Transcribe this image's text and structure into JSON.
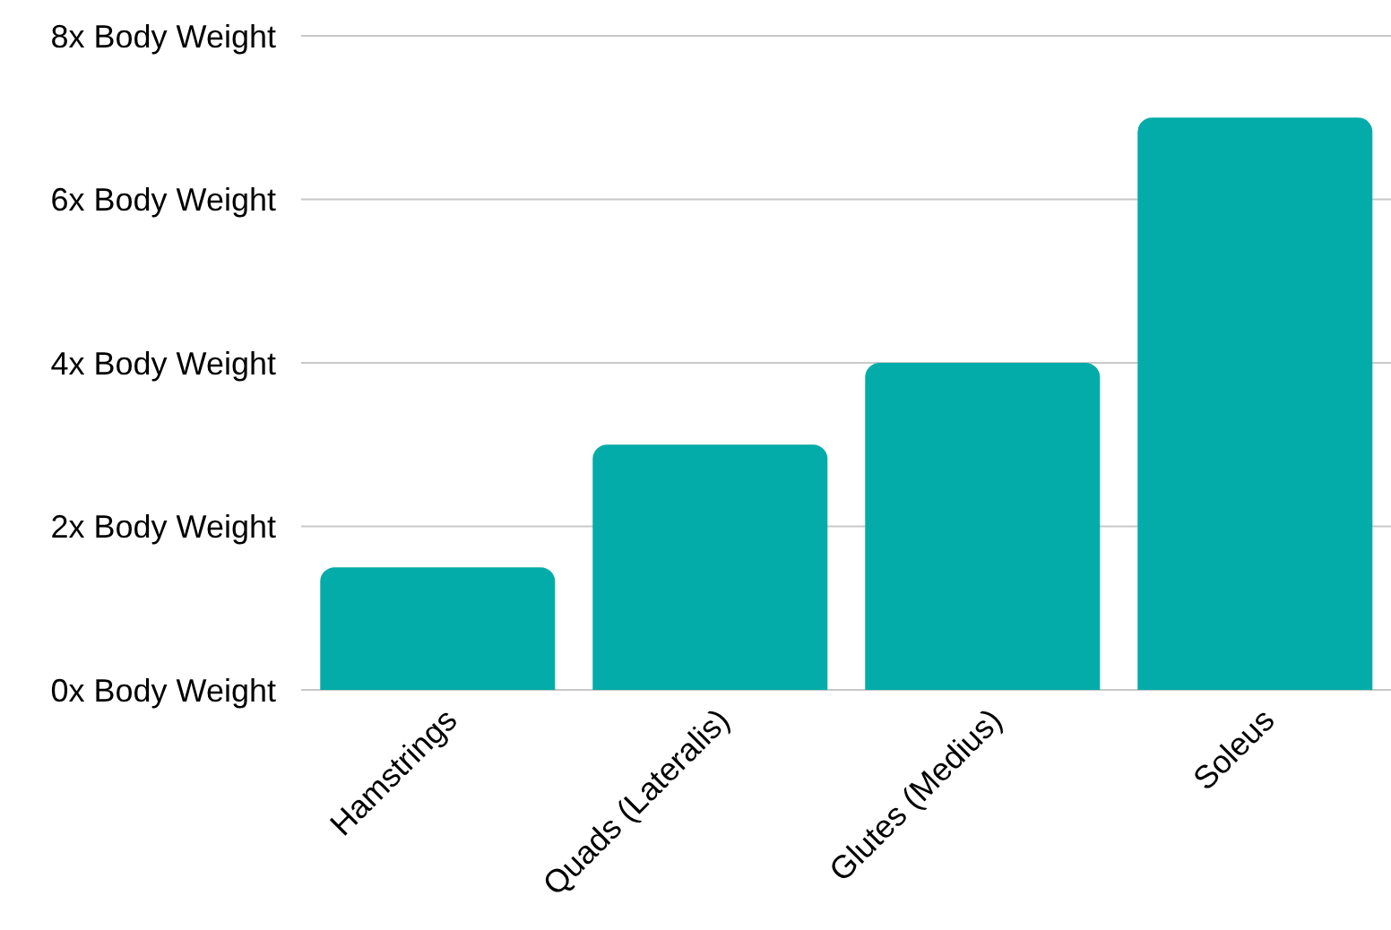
{
  "chart_data": {
    "type": "bar",
    "categories": [
      "Hamstrings",
      "Quads (Lateralis)",
      "Glutes (Medius)",
      "Soleus"
    ],
    "values": [
      1.5,
      3,
      4,
      7
    ],
    "color": "#03aca8",
    "ylim": [
      0,
      8
    ],
    "yticks": [
      {
        "value": 0,
        "label": "0x Body Weight"
      },
      {
        "value": 2,
        "label": "2x Body Weight"
      },
      {
        "value": 4,
        "label": "4x Body Weight"
      },
      {
        "value": 6,
        "label": "6x Body Weight"
      },
      {
        "value": 8,
        "label": "8x Body Weight"
      }
    ],
    "grid": "y",
    "legend": false
  }
}
